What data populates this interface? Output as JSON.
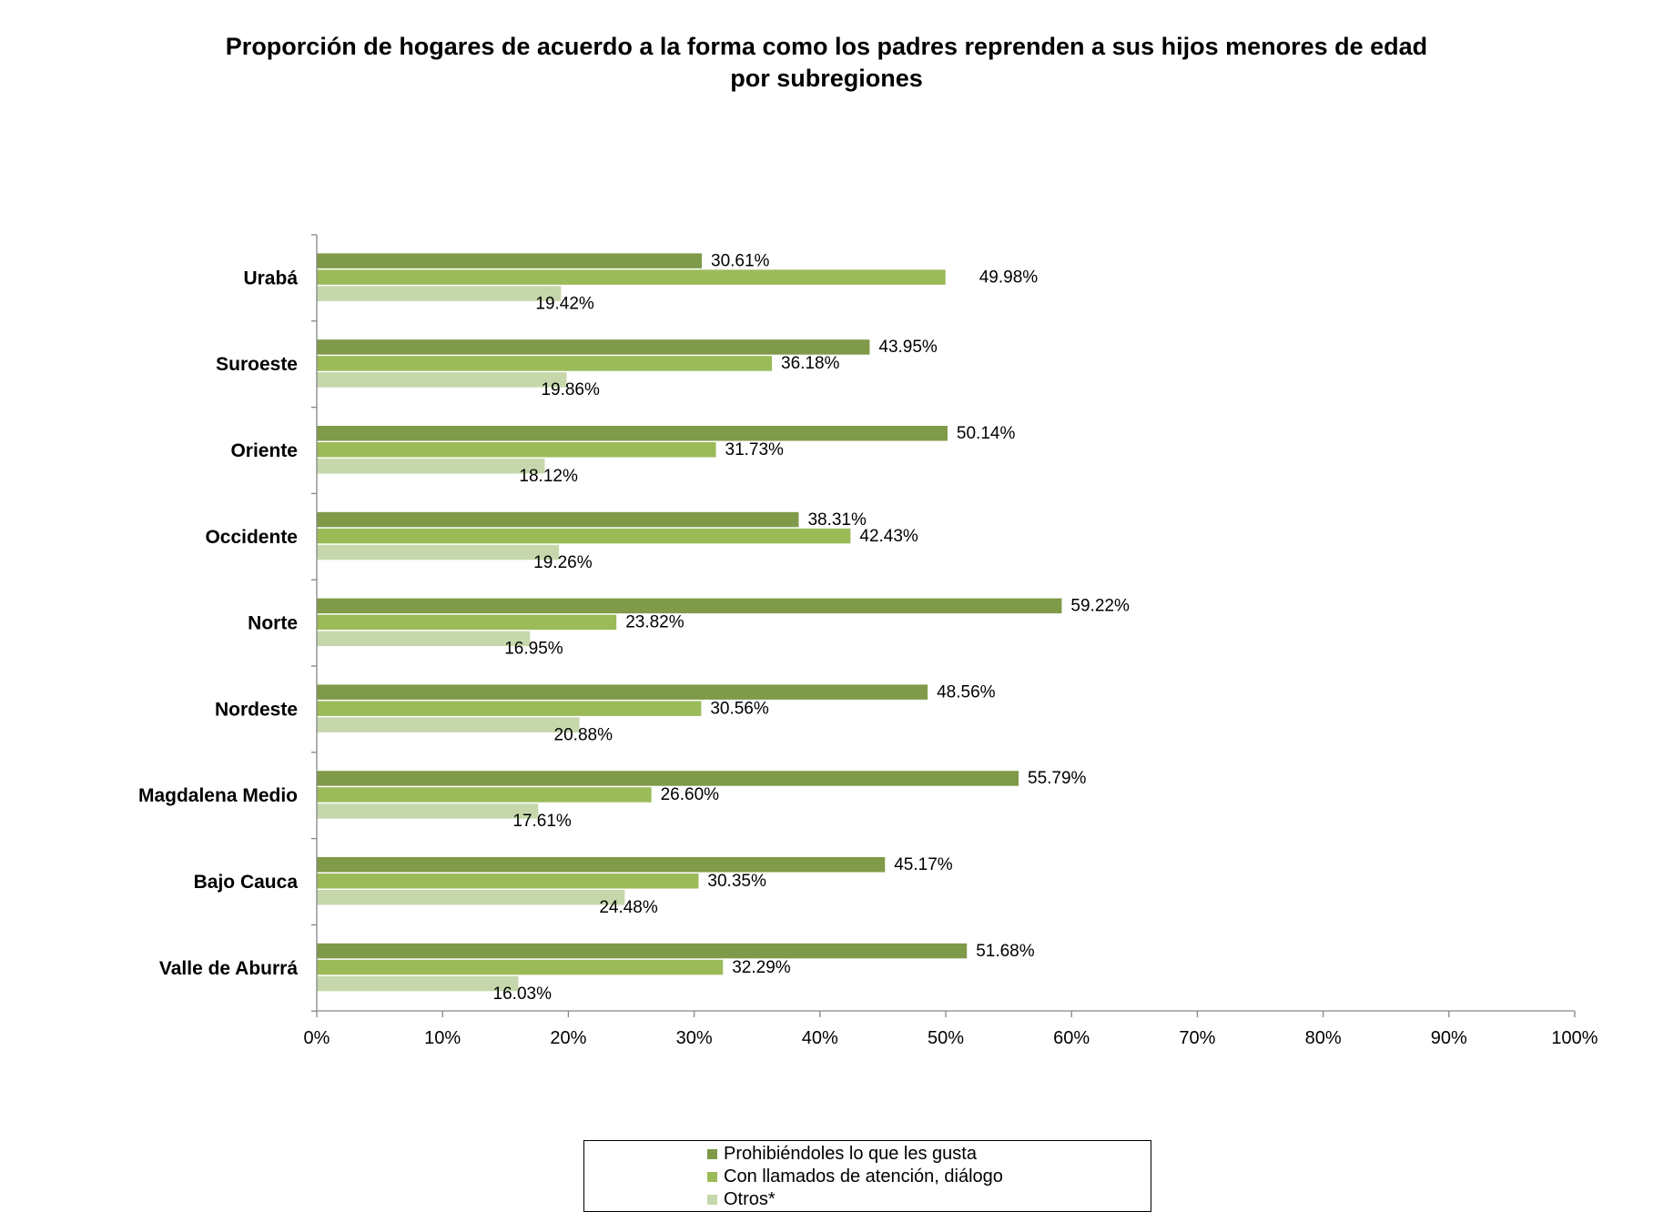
{
  "chart_data": {
    "type": "bar",
    "orientation": "horizontal",
    "title": "Proporción de hogares de acuerdo a la forma como los padres reprenden a sus hijos menores de edad por subregiones",
    "title_lines": [
      "Proporción de hogares de acuerdo a la forma como los padres reprenden a sus hijos menores de edad",
      "por subregiones"
    ],
    "categories": [
      "Urabá",
      "Suroeste",
      "Oriente",
      "Occidente",
      "Norte",
      "Nordeste",
      "Magdalena Medio",
      "Bajo Cauca",
      "Valle de Aburrá"
    ],
    "series": [
      {
        "name": "Prohibiéndoles lo que les gusta",
        "color": "#7f9a48",
        "values": [
          30.61,
          43.95,
          50.14,
          38.31,
          59.22,
          48.56,
          55.79,
          45.17,
          51.68
        ],
        "labels": [
          "30.61%",
          "43.95%",
          "50.14%",
          "38.31%",
          "59.22%",
          "48.56%",
          "55.79%",
          "45.17%",
          "51.68%"
        ]
      },
      {
        "name": "Con llamados de atención, diálogo",
        "color": "#9bbb59",
        "values": [
          49.98,
          36.18,
          31.73,
          42.43,
          23.82,
          30.56,
          26.6,
          30.35,
          32.29
        ],
        "labels": [
          "49.98%",
          "36.18%",
          "31.73%",
          "42.43%",
          "23.82%",
          "30.56%",
          "26.60%",
          "30.35%",
          "32.29%"
        ]
      },
      {
        "name": "Otros*",
        "color": "#c6d8ab",
        "values": [
          19.42,
          19.86,
          18.12,
          19.26,
          16.95,
          20.88,
          17.61,
          24.48,
          16.03
        ],
        "labels": [
          "19.42%",
          "19.86%",
          "18.12%",
          "19.26%",
          "16.95%",
          "20.88%",
          "17.61%",
          "24.48%",
          "16.03%"
        ]
      }
    ],
    "xlim": [
      0,
      100
    ],
    "xticks": [
      "0%",
      "10%",
      "20%",
      "30%",
      "40%",
      "50%",
      "60%",
      "70%",
      "80%",
      "90%",
      "100%"
    ],
    "grid": false,
    "legend_position": "bottom"
  }
}
